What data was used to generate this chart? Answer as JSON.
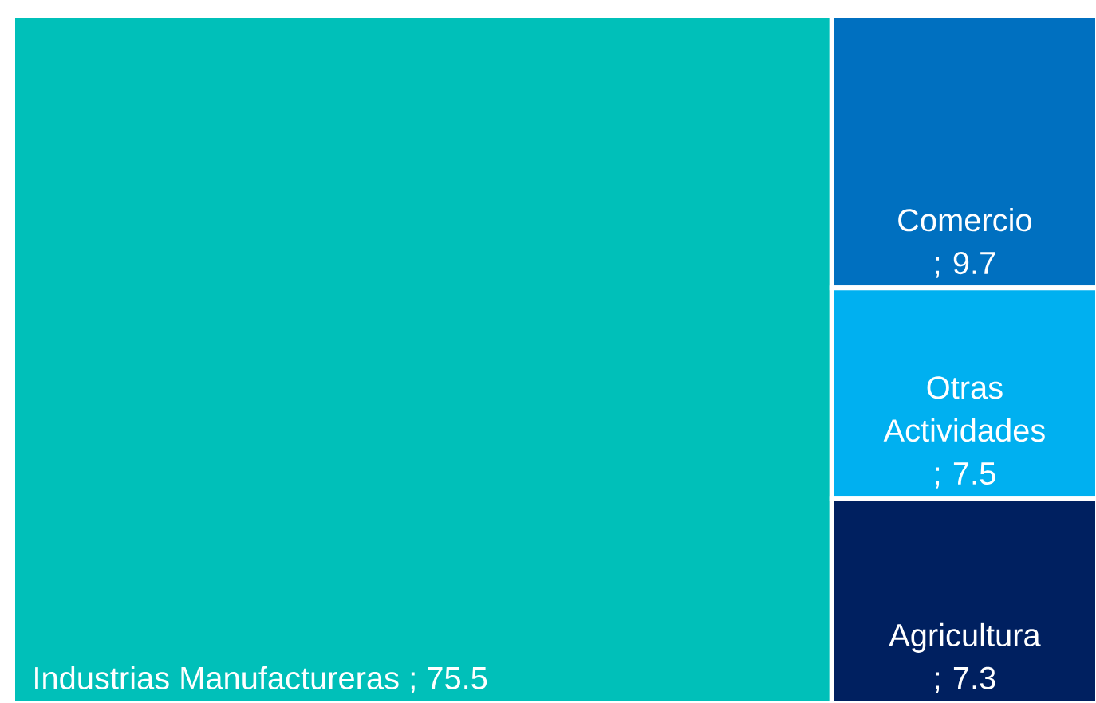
{
  "chart_data": {
    "type": "other",
    "categories": [
      "Industrias Manufactureras",
      "Comercio",
      "Otras Actividades",
      "Agricultura"
    ],
    "values": [
      75.5,
      9.7,
      7.5,
      7.3
    ],
    "colors": [
      "#00c0b9",
      "#0070c0",
      "#00b0f0",
      "#002060"
    ],
    "value_labels": [
      "; 75.5",
      "; 9.7",
      "; 7.5",
      "; 7.3"
    ]
  }
}
